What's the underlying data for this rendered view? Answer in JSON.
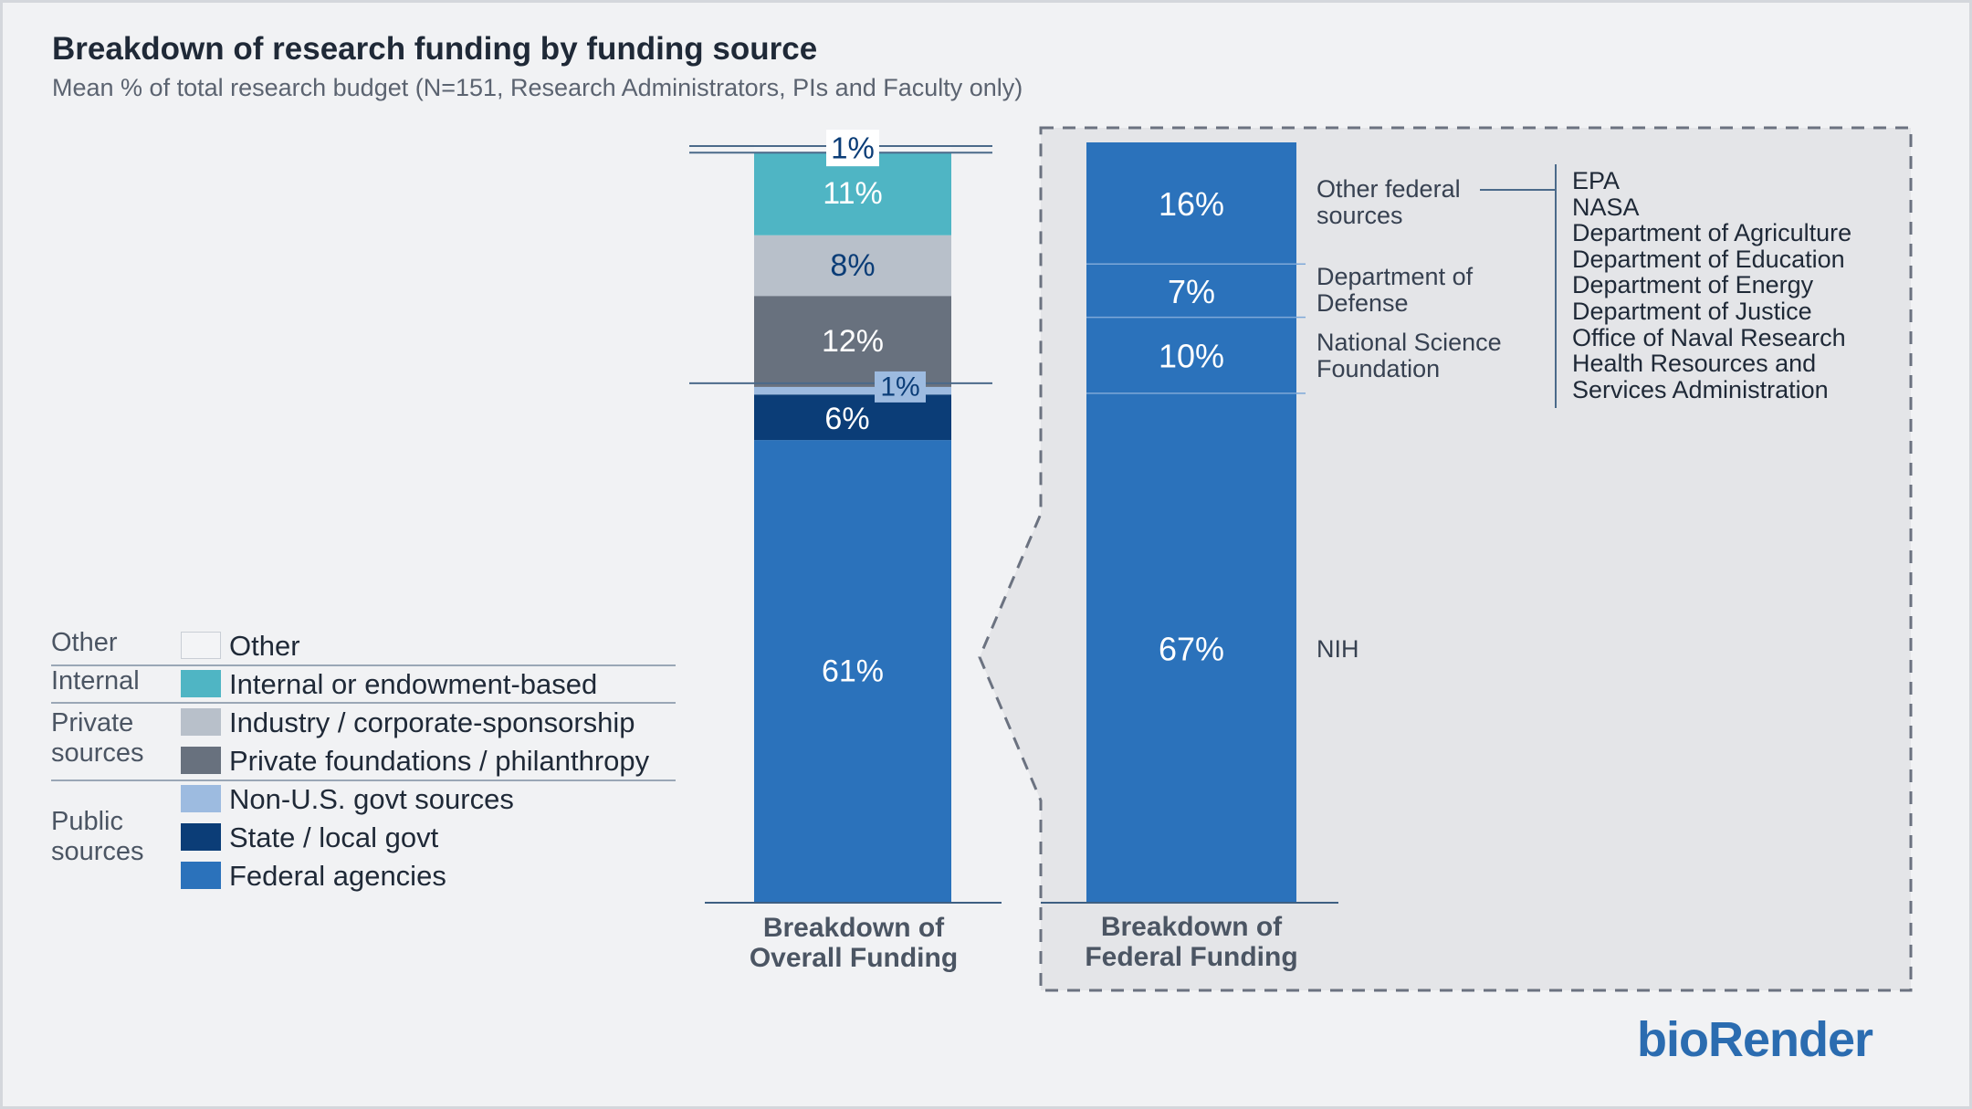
{
  "header": {
    "title": "Breakdown of research funding by funding source",
    "subtitle": "Mean % of total research budget (N=151, Research Administrators, PIs and Faculty only)"
  },
  "legend": {
    "groups": [
      {
        "label": "Other"
      },
      {
        "label": "Internal"
      },
      {
        "label": "Private\nsources"
      },
      {
        "label": "Public\nsources"
      }
    ],
    "items": [
      {
        "label": "Other",
        "color": "#f3f4f6"
      },
      {
        "label": "Internal or endowment-based",
        "color": "#4fb5c4"
      },
      {
        "label": "Industry / corporate-sponsorship",
        "color": "#b8c0ca"
      },
      {
        "label": "Private foundations / philanthropy",
        "color": "#68717e"
      },
      {
        "label": "Non-U.S. govt sources",
        "color": "#9dbbe0"
      },
      {
        "label": "State / local govt",
        "color": "#0b3d77"
      },
      {
        "label": "Federal agencies",
        "color": "#2b72bb"
      }
    ]
  },
  "chart_data": [
    {
      "type": "bar",
      "stacked": true,
      "categories": [
        "Breakdown of\nOverall Funding"
      ],
      "series": [
        {
          "name": "Federal agencies",
          "values": [
            61
          ],
          "label": "61%",
          "color": "#2b72bb"
        },
        {
          "name": "State / local govt",
          "values": [
            6
          ],
          "label": "6%",
          "color": "#0b3d77"
        },
        {
          "name": "Non-U.S. govt sources",
          "values": [
            1
          ],
          "label": "1%",
          "color": "#9dbbe0"
        },
        {
          "name": "Private foundations / philanthropy",
          "values": [
            12
          ],
          "label": "12%",
          "color": "#68717e"
        },
        {
          "name": "Industry / corporate-sponsorship",
          "values": [
            8
          ],
          "label": "8%",
          "color": "#b8c0ca"
        },
        {
          "name": "Internal or endowment-based",
          "values": [
            11
          ],
          "label": "11%",
          "color": "#4fb5c4"
        },
        {
          "name": "Other",
          "values": [
            1
          ],
          "label": "1%",
          "color": "#f3f4f6"
        }
      ]
    },
    {
      "type": "bar",
      "stacked": true,
      "categories": [
        "Breakdown of\nFederal Funding"
      ],
      "series": [
        {
          "name": "NIH",
          "values": [
            67
          ],
          "label": "67%"
        },
        {
          "name": "National Science\nFoundation",
          "values": [
            10
          ],
          "label": "10%"
        },
        {
          "name": "Department of\nDefense",
          "values": [
            7
          ],
          "label": "7%"
        },
        {
          "name": "Other federal\nsources",
          "values": [
            16
          ],
          "label": "16%"
        }
      ],
      "other_federal_sources": [
        "EPA",
        "NASA",
        "Department of Agriculture",
        "Department of Education",
        "Department of Energy",
        "Department of Justice",
        "Office of Naval Research",
        "Health Resources and\nServices Administration"
      ]
    }
  ],
  "brand": "bioRender"
}
